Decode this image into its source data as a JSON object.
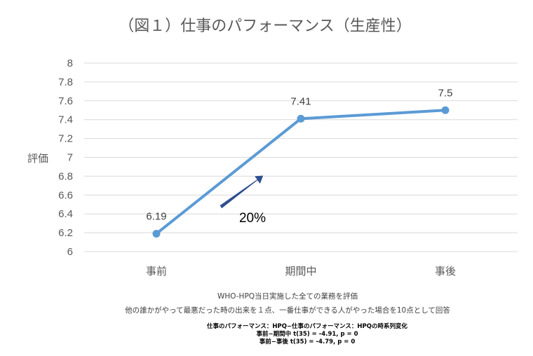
{
  "chart_data": {
    "type": "line",
    "title": "（図１）仕事のパフォーマンス（生産性）",
    "ylabel": "評価",
    "xlabel": "",
    "categories": [
      "事前",
      "期間中",
      "事後"
    ],
    "series": [
      {
        "values": [
          6.19,
          7.41,
          7.5
        ],
        "labels": [
          "6.19",
          "7.41",
          "7.5"
        ],
        "color": "#5b9bd5"
      }
    ],
    "ylim": [
      6,
      8
    ],
    "yticks": [
      "6",
      "6.2",
      "6.4",
      "6.6",
      "6.8",
      "7",
      "7.2",
      "7.4",
      "7.6",
      "7.8",
      "8"
    ],
    "grid": true,
    "annotation": {
      "text": "20%",
      "arrow_color": "#2f4f8f"
    }
  },
  "notes": {
    "line1": "WHO-HPQ当日実施した全ての業務を評価",
    "line2": "他の誰かがやって最悪だった時の出来を１点、一番仕事ができる人がやった場合を10点として回答"
  },
  "stats": {
    "line1": "仕事のパフォーマンス：HPQ−仕事のパフォーマンス：HPQの時系列変化",
    "line2": "事前−期間中 t(35) = -4.91, p = 0",
    "line3": "事前−事後 t(35) = -4.79, p = 0"
  }
}
